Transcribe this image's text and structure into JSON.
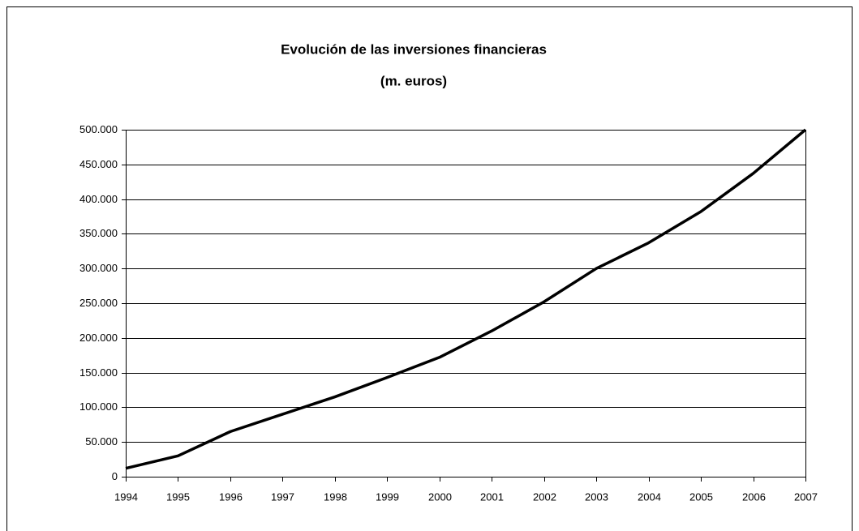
{
  "chart_data": {
    "type": "line",
    "title": "Evolución de  las inversiones financieras",
    "subtitle": "(m. euros)",
    "x": [
      1994,
      1995,
      1996,
      1997,
      1998,
      1999,
      2000,
      2001,
      2002,
      2003,
      2004,
      2005,
      2006,
      2007
    ],
    "series": [
      {
        "color": "#000000",
        "values": [
          12000,
          30000,
          65000,
          90000,
          115000,
          143000,
          172000,
          210000,
          252000,
          300000,
          337000,
          382000,
          437000,
          500000
        ]
      }
    ],
    "xlim": [
      1994,
      2007
    ],
    "xticks": [
      1994,
      1995,
      1996,
      1997,
      1998,
      1999,
      2000,
      2001,
      2002,
      2003,
      2004,
      2005,
      2006,
      2007
    ],
    "ylim": [
      0,
      500000
    ],
    "yticks": [
      0,
      {
        "value": 50000,
        "label": "50.000"
      },
      {
        "value": 100000,
        "label": "100.000"
      },
      {
        "value": 150000,
        "label": "150.000"
      },
      {
        "value": 200000,
        "label": "200.000"
      },
      {
        "value": 250000,
        "label": "250.000"
      },
      {
        "value": 300000,
        "label": "300.000"
      },
      {
        "value": 350000,
        "label": "350.000"
      },
      {
        "value": 400000,
        "label": "400.000"
      },
      {
        "value": 450000,
        "label": "450.000"
      },
      {
        "value": 500000,
        "label": "500.000"
      }
    ],
    "grid": true
  }
}
